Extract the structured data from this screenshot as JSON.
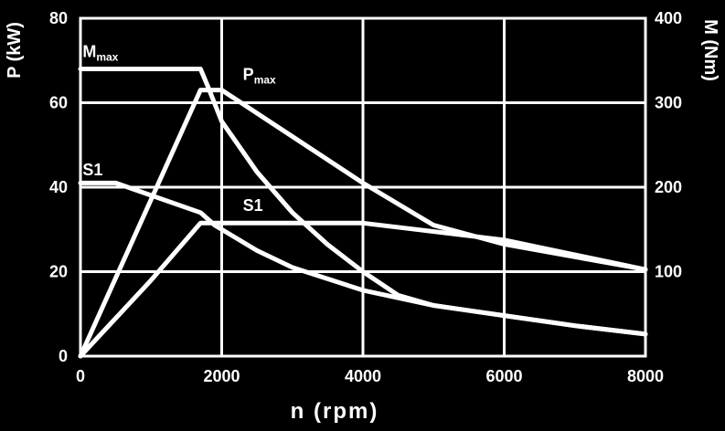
{
  "chart_data": {
    "type": "line",
    "xlabel": "n (rpm)",
    "ylabel_left": "P (kW)",
    "ylabel_right": "M (Nm)",
    "xlim": [
      0,
      8000
    ],
    "ylim_left": [
      0,
      80
    ],
    "ylim_right": [
      0,
      400
    ],
    "x_ticks": [
      "0",
      "2000",
      "4000",
      "6000",
      "8000"
    ],
    "y_left_ticks": [
      "0",
      "20",
      "40",
      "60",
      "80"
    ],
    "y_right_ticks": [
      "100",
      "200",
      "300",
      "400"
    ],
    "grid": true,
    "series": [
      {
        "name": "Mmax",
        "axis": "right",
        "quantity": "torque",
        "x": [
          0,
          1700,
          1800,
          2000,
          2500,
          3000,
          3500,
          4000,
          4500,
          5000,
          6000,
          7000,
          8000
        ],
        "y": [
          340,
          340,
          320,
          278,
          218,
          170,
          132,
          100,
          72,
          60,
          48,
          36,
          26
        ]
      },
      {
        "name": "Pmax",
        "axis": "left",
        "quantity": "power",
        "x": [
          0,
          1700,
          2000,
          3000,
          4000,
          5000,
          6000,
          7000,
          8000
        ],
        "y": [
          0,
          63,
          63,
          52,
          41,
          31,
          26.5,
          23.5,
          20.5
        ]
      },
      {
        "name": "S1",
        "axis": "right",
        "quantity": "torque",
        "x": [
          0,
          500,
          1700,
          1900,
          2500,
          3000,
          4000,
          5000,
          6000,
          7000,
          8000
        ],
        "y": [
          205,
          205,
          170,
          155,
          125,
          105,
          78,
          60,
          48,
          36,
          26
        ]
      },
      {
        "name": "S1",
        "axis": "left",
        "quantity": "power",
        "x": [
          0,
          1000,
          1700,
          2000,
          4000,
          6000,
          8000
        ],
        "y": [
          0,
          18,
          31.5,
          31.5,
          31.5,
          27.5,
          20.5
        ]
      }
    ],
    "labels": [
      {
        "main": "M",
        "sub": "max",
        "x": 30,
        "yl": 70
      },
      {
        "main": "P",
        "sub": "max",
        "x": 2300,
        "yl": 64.5
      },
      {
        "main": "S1",
        "sub": "",
        "x": 30,
        "yl": 42
      },
      {
        "main": "S1",
        "sub": "",
        "x": 2300,
        "yl": 33.5
      }
    ]
  }
}
